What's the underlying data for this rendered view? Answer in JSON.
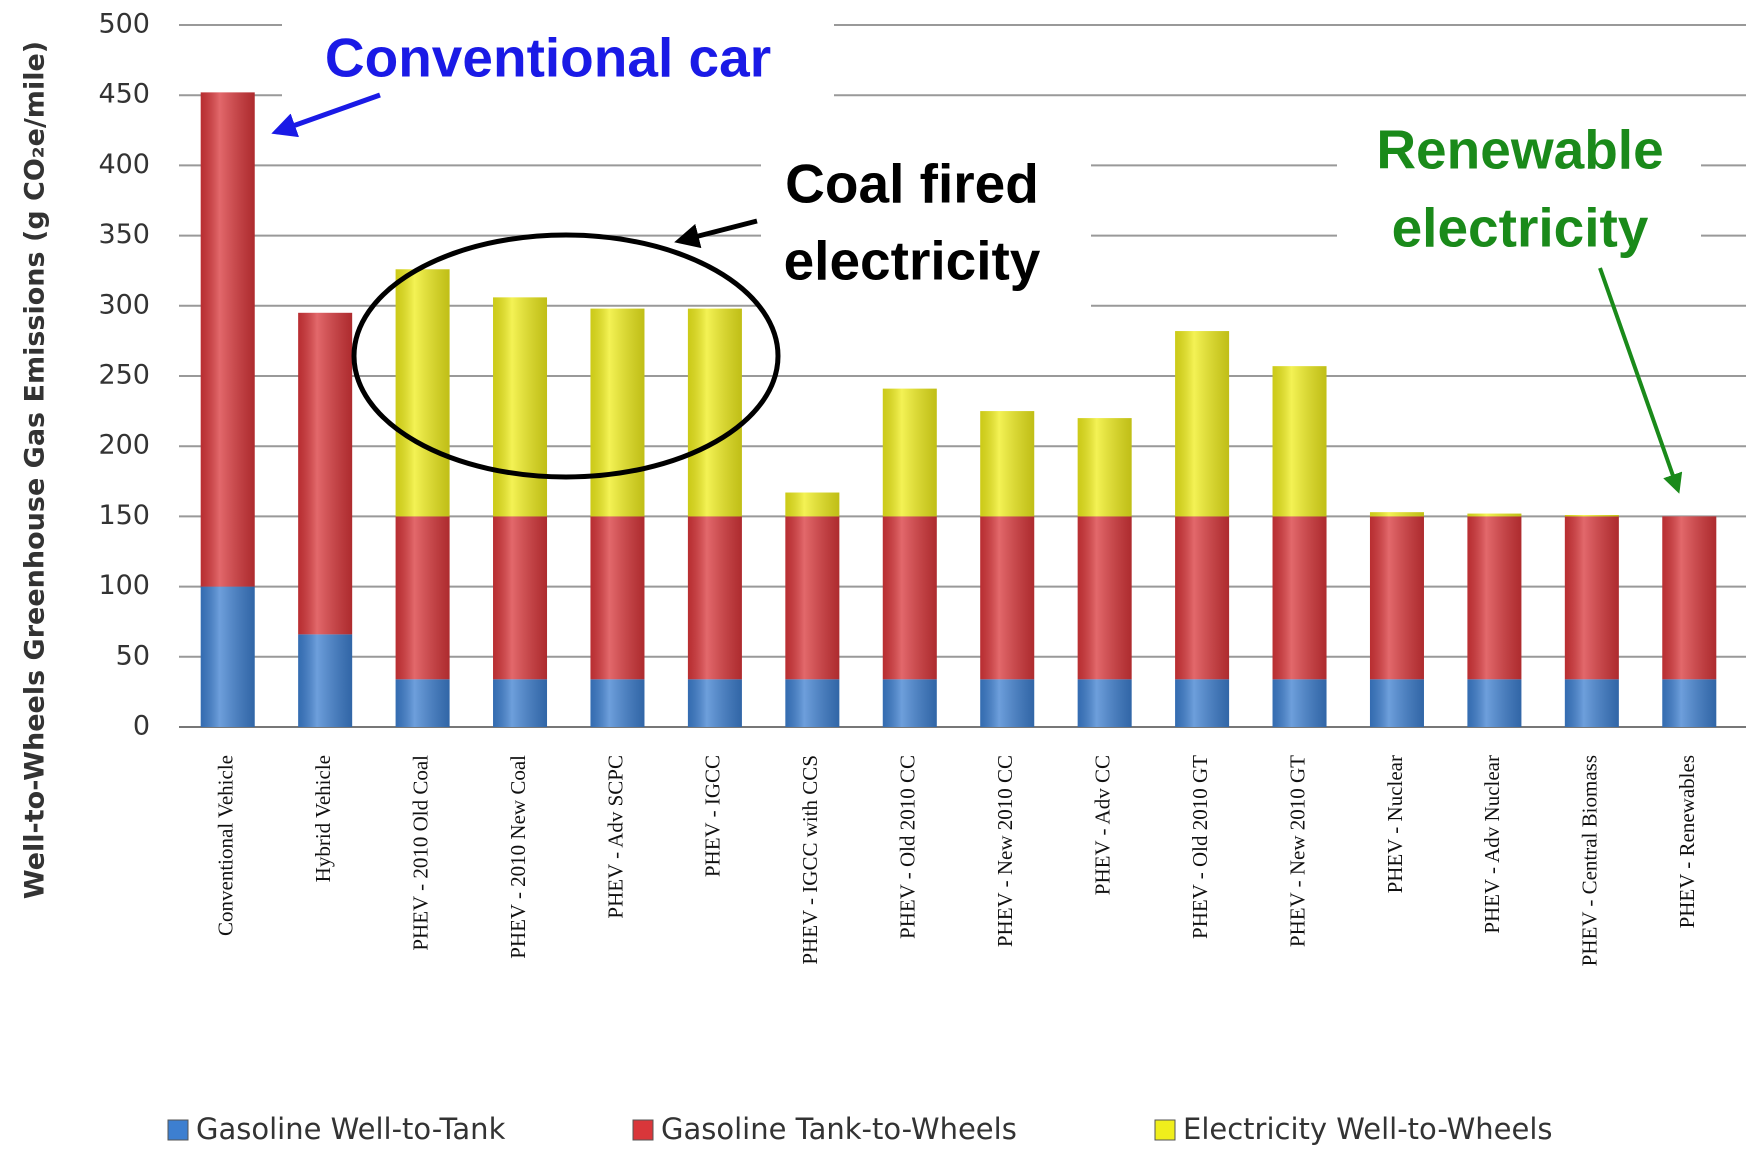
{
  "chart_data": {
    "type": "bar",
    "stacked": true,
    "y_label": "Well-to-Wheels Greenhouse Gas Emissions (g CO₂e/mile)",
    "categories": [
      "Conventional Vehicle",
      "Hybrid Vehicle",
      "PHEV - 2010 Old Coal",
      "PHEV - 2010 New Coal",
      "PHEV - Adv SCPC",
      "PHEV - IGCC",
      "PHEV - IGCC with CCS",
      "PHEV - Old 2010 CC",
      "PHEV - New 2010 CC",
      "PHEV - Adv CC",
      "PHEV - Old 2010 GT",
      "PHEV - New 2010 GT",
      "PHEV - Nuclear",
      "PHEV - Adv Nuclear",
      "PHEV - Central Biomass",
      "PHEV - Renewables"
    ],
    "series": [
      {
        "name": "Gasoline Well-to-Tank",
        "color": "#3d7fd0",
        "values": [
          100,
          66,
          34,
          34,
          34,
          34,
          34,
          34,
          34,
          34,
          34,
          34,
          34,
          34,
          34,
          34
        ]
      },
      {
        "name": "Gasoline Tank-to-Wheels",
        "color": "#d9363a",
        "values": [
          352,
          229,
          116,
          116,
          116,
          116,
          116,
          116,
          116,
          116,
          116,
          116,
          116,
          116,
          116,
          116
        ]
      },
      {
        "name": "Electricity Well-to-Wheels",
        "color": "#f0ee1c",
        "values": [
          0,
          0,
          176,
          156,
          148,
          148,
          17,
          91,
          75,
          70,
          132,
          107,
          3,
          2,
          1,
          0
        ]
      }
    ],
    "ylim": [
      0,
      500
    ],
    "yticks": [
      0,
      50,
      100,
      150,
      200,
      250,
      300,
      350,
      400,
      450,
      500
    ],
    "grid": true,
    "legend": "bottom",
    "annotations": [
      {
        "lines": [
          "Conventional car"
        ],
        "color": "#1a1ae6"
      },
      {
        "lines": [
          "Coal fired",
          "electricity"
        ],
        "color": "#000000"
      },
      {
        "lines": [
          "Renewable",
          "electricity"
        ],
        "color": "#1a8a1a"
      }
    ]
  }
}
